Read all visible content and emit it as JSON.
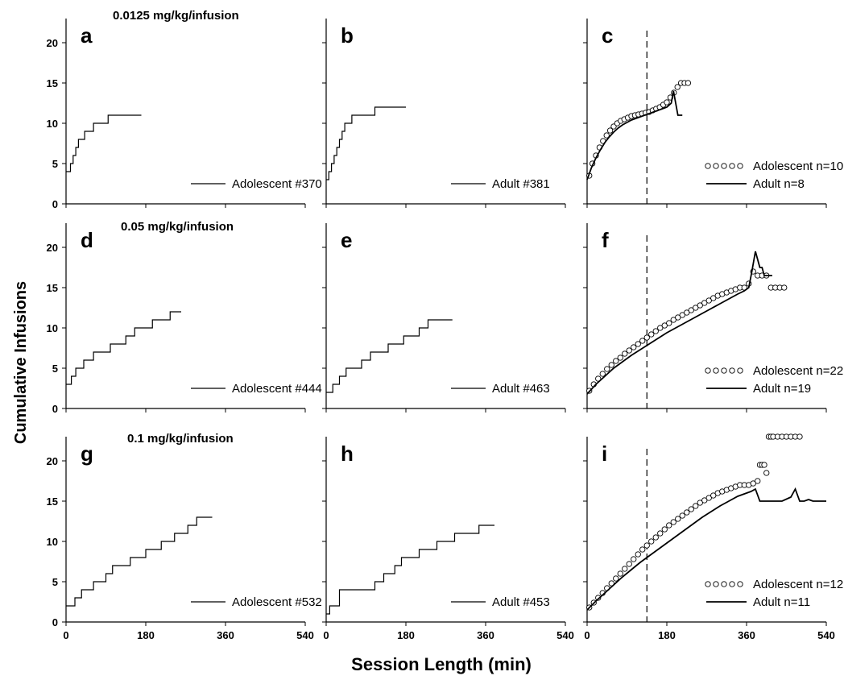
{
  "figure": {
    "ylabel": "Cumulative Infusions",
    "xlabel": "Session Length (min)",
    "dose_labels": [
      "0.0125 mg/kg/infusion",
      "0.05 mg/kg/infusion",
      "0.1 mg/kg/infusion"
    ]
  },
  "chart_data": [
    {
      "type": "line",
      "panel": "a",
      "xlim": [
        0,
        540
      ],
      "ylim": [
        0,
        23
      ],
      "xticks": [
        0,
        180,
        360,
        540
      ],
      "yticks": [
        0,
        5,
        10,
        15,
        20
      ],
      "series": [
        {
          "name": "Adolescent #370",
          "style": "step",
          "x": [
            0,
            10,
            16,
            22,
            28,
            35,
            42,
            52,
            62,
            72,
            80,
            95,
            105,
            170
          ],
          "y": [
            4,
            5,
            6,
            7,
            8,
            8,
            9,
            9,
            10,
            10,
            10,
            11,
            11,
            11
          ]
        }
      ]
    },
    {
      "type": "line",
      "panel": "b",
      "xlim": [
        0,
        540
      ],
      "ylim": [
        0,
        23
      ],
      "xticks": [
        0,
        180,
        360,
        540
      ],
      "yticks": [
        0,
        5,
        10,
        15,
        20
      ],
      "series": [
        {
          "name": "Adult #381",
          "style": "step",
          "x": [
            0,
            6,
            12,
            18,
            24,
            30,
            36,
            42,
            48,
            58,
            68,
            80,
            95,
            110,
            125,
            180
          ],
          "y": [
            3,
            4,
            5,
            6,
            7,
            8,
            9,
            10,
            10,
            11,
            11,
            11,
            11,
            12,
            12,
            12
          ]
        }
      ]
    },
    {
      "type": "line",
      "panel": "c",
      "xlim": [
        0,
        540
      ],
      "ylim": [
        0,
        23
      ],
      "xticks": [
        0,
        180,
        360,
        540
      ],
      "yticks": [
        0,
        5,
        10,
        15,
        20
      ],
      "vline": 135,
      "series": [
        {
          "name": "Adolescent n=10",
          "style": "circles",
          "x": [
            5,
            12,
            20,
            28,
            36,
            44,
            52,
            60,
            68,
            76,
            84,
            92,
            100,
            108,
            116,
            124,
            132,
            140,
            148,
            156,
            164,
            172,
            180,
            188,
            196,
            204,
            212,
            220,
            228
          ],
          "y": [
            3.5,
            5,
            6,
            7,
            7.8,
            8.5,
            9.1,
            9.6,
            10,
            10.3,
            10.5,
            10.7,
            10.9,
            11,
            11.1,
            11.2,
            11.3,
            11.4,
            11.6,
            11.8,
            12,
            12.3,
            12.6,
            13.2,
            13.8,
            14.5,
            15,
            15,
            15
          ]
        },
        {
          "name": "Adult n=8",
          "style": "line",
          "x": [
            0,
            10,
            20,
            30,
            40,
            50,
            60,
            70,
            80,
            90,
            100,
            110,
            120,
            130,
            140,
            150,
            160,
            170,
            180,
            190,
            195,
            200,
            205,
            210,
            215
          ],
          "y": [
            3,
            4.5,
            5.7,
            6.7,
            7.6,
            8.3,
            8.9,
            9.4,
            9.8,
            10.1,
            10.4,
            10.6,
            10.8,
            11,
            11.2,
            11.4,
            11.6,
            11.8,
            12,
            12.5,
            14,
            12.5,
            11,
            11,
            11
          ]
        }
      ]
    },
    {
      "type": "line",
      "panel": "d",
      "xlim": [
        0,
        540
      ],
      "ylim": [
        0,
        23
      ],
      "xticks": [
        0,
        180,
        360,
        540
      ],
      "yticks": [
        0,
        5,
        10,
        15,
        20
      ],
      "series": [
        {
          "name": "Adolescent #444",
          "style": "step",
          "x": [
            0,
            12,
            22,
            32,
            40,
            48,
            62,
            80,
            100,
            118,
            135,
            155,
            170,
            195,
            210,
            235,
            260
          ],
          "y": [
            3,
            4,
            5,
            5,
            6,
            6,
            7,
            7,
            8,
            8,
            9,
            10,
            10,
            11,
            11,
            12,
            12
          ]
        }
      ]
    },
    {
      "type": "line",
      "panel": "e",
      "xlim": [
        0,
        540
      ],
      "ylim": [
        0,
        23
      ],
      "xticks": [
        0,
        180,
        360,
        540
      ],
      "yticks": [
        0,
        5,
        10,
        15,
        20
      ],
      "series": [
        {
          "name": "Adult #463",
          "style": "step",
          "x": [
            0,
            15,
            30,
            45,
            60,
            80,
            100,
            120,
            140,
            160,
            175,
            195,
            210,
            230,
            260,
            285
          ],
          "y": [
            2,
            3,
            4,
            5,
            5,
            6,
            7,
            7,
            8,
            8,
            9,
            9,
            10,
            11,
            11,
            11
          ]
        }
      ]
    },
    {
      "type": "line",
      "panel": "f",
      "xlim": [
        0,
        540
      ],
      "ylim": [
        0,
        23
      ],
      "xticks": [
        0,
        180,
        360,
        540
      ],
      "yticks": [
        0,
        5,
        10,
        15,
        20
      ],
      "vline": 135,
      "series": [
        {
          "name": "Adolescent n=22",
          "style": "circles",
          "x": [
            5,
            15,
            25,
            35,
            45,
            55,
            65,
            75,
            85,
            95,
            105,
            115,
            125,
            135,
            145,
            155,
            165,
            175,
            185,
            195,
            205,
            215,
            225,
            235,
            245,
            255,
            265,
            275,
            285,
            295,
            305,
            315,
            325,
            335,
            345,
            355,
            365,
            375,
            385,
            395,
            405,
            415,
            425,
            435,
            445
          ],
          "y": [
            2.2,
            3,
            3.7,
            4.3,
            4.9,
            5.4,
            5.9,
            6.3,
            6.8,
            7.2,
            7.6,
            8,
            8.4,
            8.8,
            9.2,
            9.6,
            10,
            10.3,
            10.6,
            11,
            11.3,
            11.6,
            11.9,
            12.2,
            12.5,
            12.8,
            13.1,
            13.4,
            13.7,
            14,
            14.2,
            14.4,
            14.6,
            14.8,
            15,
            15,
            15.5,
            17,
            16.5,
            16.5,
            16.5,
            15,
            15,
            15,
            15
          ]
        },
        {
          "name": "Adult n=19",
          "style": "line",
          "x": [
            0,
            20,
            40,
            60,
            80,
            100,
            120,
            140,
            160,
            180,
            200,
            220,
            240,
            260,
            280,
            300,
            320,
            340,
            355,
            365,
            372,
            380,
            385,
            390,
            395,
            400,
            410,
            418
          ],
          "y": [
            1.8,
            3,
            4,
            5,
            5.8,
            6.6,
            7.3,
            8,
            8.7,
            9.4,
            10,
            10.6,
            11.2,
            11.8,
            12.4,
            13,
            13.6,
            14.2,
            14.6,
            15,
            17,
            19.5,
            18.5,
            17.5,
            17.5,
            16.5,
            16.5,
            16.5
          ]
        }
      ]
    },
    {
      "type": "line",
      "panel": "g",
      "xlim": [
        0,
        540
      ],
      "ylim": [
        0,
        23
      ],
      "xticks": [
        0,
        180,
        360,
        540
      ],
      "yticks": [
        0,
        5,
        10,
        15,
        20
      ],
      "series": [
        {
          "name": "Adolescent #532",
          "style": "step",
          "x": [
            0,
            20,
            35,
            48,
            62,
            75,
            90,
            105,
            125,
            145,
            165,
            180,
            195,
            215,
            230,
            245,
            260,
            275,
            295,
            330
          ],
          "y": [
            2,
            3,
            4,
            4,
            5,
            5,
            6,
            7,
            7,
            8,
            8,
            9,
            9,
            10,
            10,
            11,
            11,
            12,
            13,
            13
          ]
        }
      ]
    },
    {
      "type": "line",
      "panel": "h",
      "xlim": [
        0,
        540
      ],
      "ylim": [
        0,
        23
      ],
      "xticks": [
        0,
        180,
        360,
        540
      ],
      "yticks": [
        0,
        5,
        10,
        15,
        20
      ],
      "series": [
        {
          "name": "Adult #453",
          "style": "step",
          "x": [
            0,
            8,
            30,
            65,
            110,
            130,
            155,
            170,
            190,
            210,
            230,
            250,
            270,
            290,
            310,
            330,
            345,
            355,
            380
          ],
          "y": [
            1,
            2,
            4,
            4,
            5,
            6,
            7,
            8,
            8,
            9,
            9,
            10,
            10,
            11,
            11,
            11,
            12,
            12,
            12
          ]
        }
      ]
    },
    {
      "type": "line",
      "panel": "i",
      "xlim": [
        0,
        540
      ],
      "ylim": [
        0,
        23
      ],
      "xticks": [
        0,
        180,
        360,
        540
      ],
      "yticks": [
        0,
        5,
        10,
        15,
        20
      ],
      "vline": 135,
      "series": [
        {
          "name": "Adolescent n=12",
          "style": "circles",
          "x": [
            5,
            15,
            25,
            35,
            45,
            55,
            65,
            75,
            85,
            95,
            105,
            115,
            125,
            135,
            145,
            155,
            165,
            175,
            185,
            195,
            205,
            215,
            225,
            235,
            245,
            255,
            265,
            275,
            285,
            295,
            305,
            315,
            325,
            335,
            345,
            355,
            365,
            375,
            385,
            390,
            395,
            400,
            405,
            410,
            415,
            420,
            430,
            440,
            450,
            460,
            470,
            480
          ],
          "y": [
            1.8,
            2.4,
            3,
            3.6,
            4.2,
            4.8,
            5.4,
            6,
            6.6,
            7.2,
            7.8,
            8.4,
            9,
            9.5,
            10,
            10.5,
            11,
            11.5,
            12,
            12.4,
            12.8,
            13.2,
            13.6,
            14,
            14.4,
            14.8,
            15.1,
            15.4,
            15.7,
            16,
            16.2,
            16.4,
            16.6,
            16.8,
            17,
            17,
            17,
            17.2,
            17.5,
            19.5,
            19.5,
            19.5,
            18.5,
            23,
            23,
            23,
            23,
            23,
            23,
            23,
            23,
            23
          ]
        },
        {
          "name": "Adult n=11",
          "style": "line",
          "x": [
            0,
            20,
            40,
            60,
            80,
            100,
            120,
            140,
            160,
            180,
            200,
            220,
            240,
            260,
            280,
            300,
            320,
            340,
            360,
            370,
            380,
            390,
            400,
            420,
            440,
            460,
            470,
            480,
            490,
            500,
            510,
            520,
            540
          ],
          "y": [
            1.5,
            2.6,
            3.6,
            4.6,
            5.6,
            6.5,
            7.4,
            8.2,
            9,
            9.8,
            10.6,
            11.4,
            12.2,
            13,
            13.7,
            14.4,
            15,
            15.6,
            16,
            16.2,
            16.5,
            15,
            15,
            15,
            15,
            15.5,
            16.5,
            15,
            15,
            15.2,
            15,
            15,
            15
          ]
        }
      ]
    }
  ]
}
